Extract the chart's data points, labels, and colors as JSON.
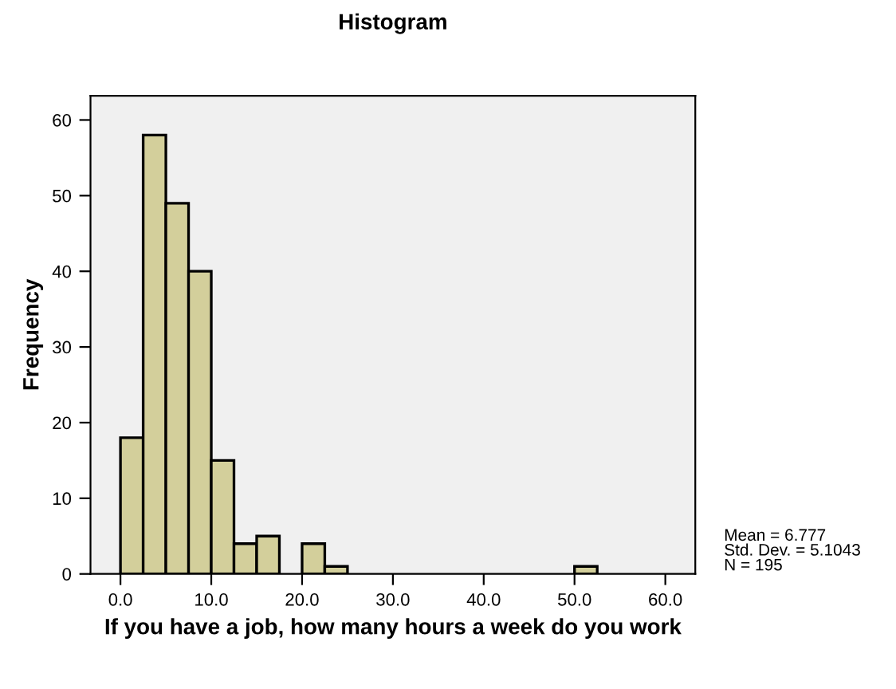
{
  "chart_data": {
    "type": "histogram",
    "title": "Histogram",
    "xlabel": "If you have a job, how many hours a week do you work",
    "ylabel": "Frequency",
    "bins": [
      0,
      2.5,
      5,
      7.5,
      10,
      12.5,
      15,
      17.5,
      20,
      22.5,
      25,
      27.5,
      30,
      32.5,
      35,
      37.5,
      40,
      42.5,
      45,
      47.5,
      50,
      52.5
    ],
    "values": [
      18,
      58,
      49,
      40,
      15,
      4,
      5,
      0,
      4,
      1,
      0,
      0,
      0,
      0,
      0,
      0,
      0,
      0,
      0,
      0,
      1
    ],
    "color": "#d3cf9b",
    "xlim": [
      -3.3,
      63.3
    ],
    "ylim": [
      0,
      63.2
    ],
    "xticks": [
      {
        "value": 0,
        "label": "0.0"
      },
      {
        "value": 10,
        "label": "10.0"
      },
      {
        "value": 20,
        "label": "20.0"
      },
      {
        "value": 30,
        "label": "30.0"
      },
      {
        "value": 40,
        "label": "40.0"
      },
      {
        "value": 50,
        "label": "50.0"
      },
      {
        "value": 60,
        "label": "60.0"
      }
    ],
    "yticks": [
      0,
      10,
      20,
      30,
      40,
      50,
      60
    ],
    "grid": false,
    "annotations": [
      "Mean = 6.777\nStd. Dev. = 5.1043\nN = 195"
    ]
  }
}
